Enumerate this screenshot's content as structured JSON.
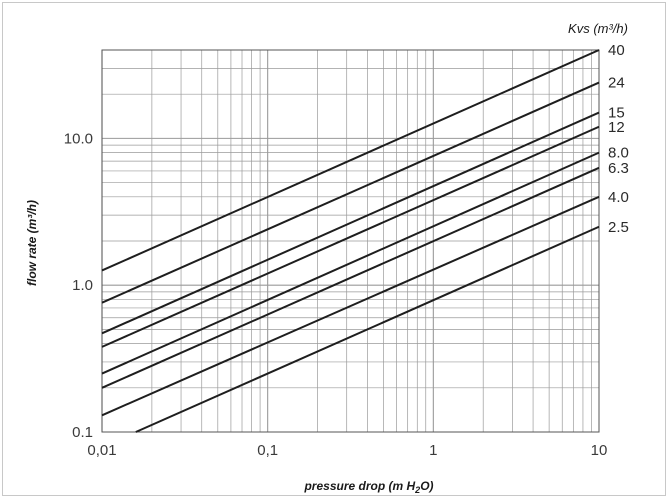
{
  "chart_data": {
    "type": "line",
    "x_scale": "log",
    "y_scale": "log",
    "xlim": [
      0.01,
      10
    ],
    "ylim": [
      0.1,
      40
    ],
    "xticks": [
      0.01,
      0.1,
      1,
      10
    ],
    "xtick_labels": [
      "0,01",
      "0,1",
      "1",
      "10"
    ],
    "yticks": [
      0.1,
      1,
      10
    ],
    "ytick_labels": [
      "0.1",
      "1.0",
      "10.0"
    ],
    "xlabel": "pressure drop (m H",
    "xlabel_sub": "2",
    "xlabel_end": "O)",
    "ylabel": "flow rate (m³/h)",
    "legend_title": "Kvs (m³/h)",
    "grid": true,
    "relation": "flow = Kvs * sqrt(pressure_drop / 10)",
    "series": [
      {
        "name": "40",
        "kvs": 40,
        "points": [
          [
            0.01,
            1.26
          ],
          [
            10,
            40
          ]
        ]
      },
      {
        "name": "24",
        "kvs": 24,
        "points": [
          [
            0.01,
            0.76
          ],
          [
            10,
            24
          ]
        ]
      },
      {
        "name": "15",
        "kvs": 15,
        "points": [
          [
            0.01,
            0.47
          ],
          [
            10,
            15
          ]
        ]
      },
      {
        "name": "12",
        "kvs": 12,
        "points": [
          [
            0.01,
            0.38
          ],
          [
            10,
            12
          ]
        ]
      },
      {
        "name": "8.0",
        "kvs": 8.0,
        "points": [
          [
            0.01,
            0.25
          ],
          [
            10,
            8.0
          ]
        ]
      },
      {
        "name": "6.3",
        "kvs": 6.3,
        "points": [
          [
            0.01,
            0.2
          ],
          [
            10,
            6.3
          ]
        ]
      },
      {
        "name": "4.0",
        "kvs": 4.0,
        "points": [
          [
            0.01,
            0.13
          ],
          [
            10,
            4.0
          ]
        ]
      },
      {
        "name": "2.5",
        "kvs": 2.5,
        "points": [
          [
            0.016,
            0.1
          ],
          [
            10,
            2.5
          ]
        ]
      }
    ],
    "colors": {
      "line": "#1e1e1e",
      "grid": "#9a9a9a",
      "axis": "#555555"
    }
  }
}
